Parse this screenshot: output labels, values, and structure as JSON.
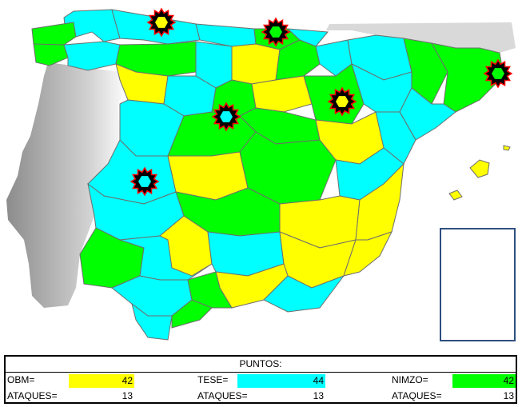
{
  "colors": {
    "OBM": "#ffff00",
    "TESE": "#00ffff",
    "NIMZO": "#00ff00",
    "portugal": "#c8c8c8",
    "france": "#d9d9d9",
    "marker_fill": "#000000",
    "marker_edge": "#ff0000"
  },
  "map": {
    "markers": [
      {
        "player": "OBM",
        "icon": "hexagon-star-icon"
      },
      {
        "player": "NIMZO",
        "icon": "hexagon-star-icon"
      },
      {
        "player": "NIMZO",
        "icon": "hexagon-star-icon"
      },
      {
        "player": "OBM",
        "icon": "hexagon-star-icon"
      },
      {
        "player": "TESE",
        "icon": "hexagon-star-icon"
      },
      {
        "player": "TESE",
        "icon": "hexagon-star-icon"
      }
    ]
  },
  "score": {
    "title": "PUNTOS:",
    "players": [
      {
        "name_label": "OBM=",
        "points": "42",
        "attacks_label": "ATAQUES=",
        "attacks": "13",
        "color": "#ffff00"
      },
      {
        "name_label": "TESE=",
        "points": "44",
        "attacks_label": "ATAQUES=",
        "attacks": "13",
        "color": "#00ffff"
      },
      {
        "name_label": "NIMZO=",
        "points": "42",
        "attacks_label": "ATAQUES=",
        "attacks": "13",
        "color": "#00ff00"
      }
    ]
  }
}
